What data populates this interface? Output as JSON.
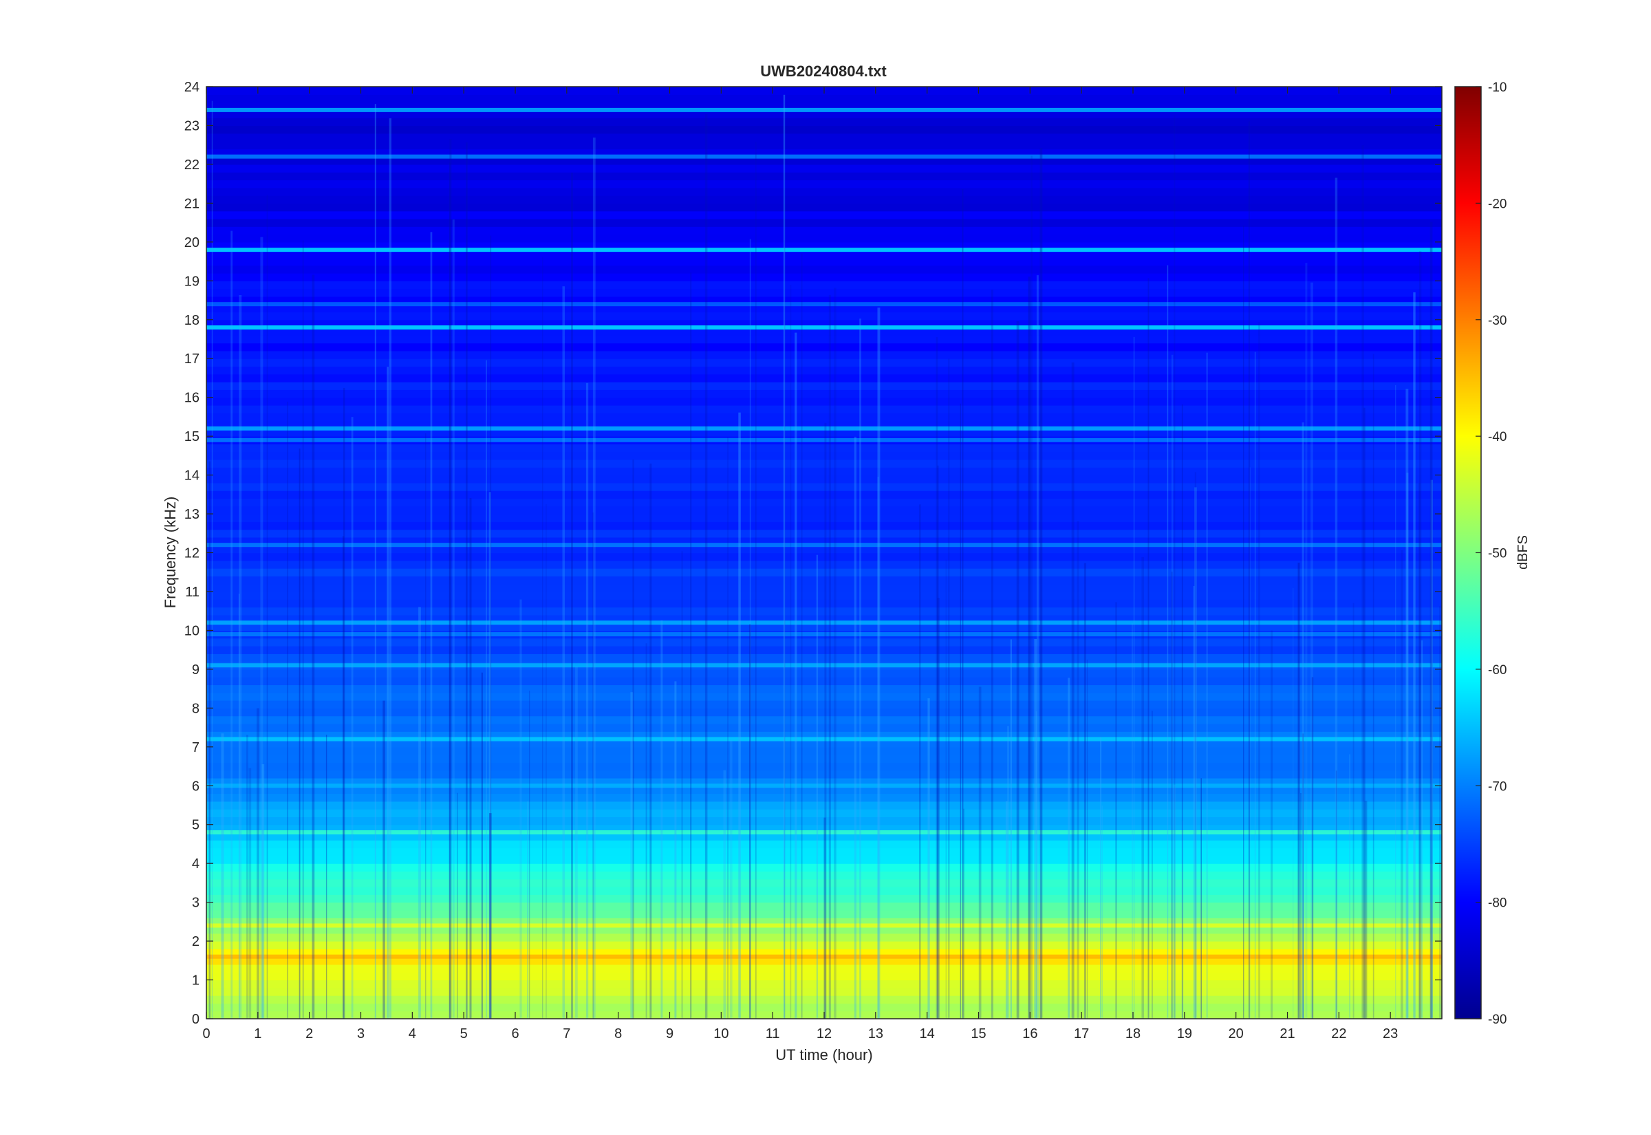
{
  "chart_data": {
    "type": "heatmap",
    "title": "UWB20240804.txt",
    "xlabel": "UT time (hour)",
    "ylabel": "Frequency (kHz)",
    "xlim": [
      0,
      24
    ],
    "ylim": [
      0,
      24
    ],
    "x_ticks": [
      0,
      1,
      2,
      3,
      4,
      5,
      6,
      7,
      8,
      9,
      10,
      11,
      12,
      13,
      14,
      15,
      16,
      17,
      18,
      19,
      20,
      21,
      22,
      23
    ],
    "y_ticks": [
      0,
      1,
      2,
      3,
      4,
      5,
      6,
      7,
      8,
      9,
      10,
      11,
      12,
      13,
      14,
      15,
      16,
      17,
      18,
      19,
      20,
      21,
      22,
      23,
      24
    ],
    "colorbar": {
      "label": "dBFS",
      "limits": [
        -90,
        -10
      ],
      "ticks": [
        -90,
        -80,
        -70,
        -60,
        -50,
        -40,
        -30,
        -20,
        -10
      ],
      "colormap": "jet"
    },
    "grid": false,
    "intensity_profile_dbfs": [
      {
        "freq_khz": 0.0,
        "level": -47
      },
      {
        "freq_khz": 0.5,
        "level": -46
      },
      {
        "freq_khz": 1.0,
        "level": -43
      },
      {
        "freq_khz": 1.6,
        "level": -38
      },
      {
        "freq_khz": 2.0,
        "level": -46
      },
      {
        "freq_khz": 3.0,
        "level": -54
      },
      {
        "freq_khz": 4.0,
        "level": -60
      },
      {
        "freq_khz": 5.0,
        "level": -66
      },
      {
        "freq_khz": 6.0,
        "level": -70
      },
      {
        "freq_khz": 8.0,
        "level": -72
      },
      {
        "freq_khz": 10.0,
        "level": -75
      },
      {
        "freq_khz": 14.0,
        "level": -77
      },
      {
        "freq_khz": 18.0,
        "level": -79
      },
      {
        "freq_khz": 21.0,
        "level": -82
      },
      {
        "freq_khz": 24.0,
        "level": -83
      }
    ],
    "narrowband_lines": [
      {
        "freq_khz": 19.8,
        "level": -62
      },
      {
        "freq_khz": 23.4,
        "level": -66
      },
      {
        "freq_khz": 22.2,
        "level": -70
      },
      {
        "freq_khz": 17.8,
        "level": -62
      },
      {
        "freq_khz": 18.4,
        "level": -72
      },
      {
        "freq_khz": 15.2,
        "level": -66
      },
      {
        "freq_khz": 14.9,
        "level": -70
      },
      {
        "freq_khz": 12.2,
        "level": -70
      },
      {
        "freq_khz": 10.2,
        "level": -66
      },
      {
        "freq_khz": 9.9,
        "level": -70
      },
      {
        "freq_khz": 9.1,
        "level": -66
      },
      {
        "freq_khz": 7.2,
        "level": -64
      },
      {
        "freq_khz": 6.0,
        "level": -66
      },
      {
        "freq_khz": 4.8,
        "level": -56
      },
      {
        "freq_khz": 2.4,
        "level": -42
      },
      {
        "freq_khz": 1.6,
        "level": -34
      }
    ]
  }
}
